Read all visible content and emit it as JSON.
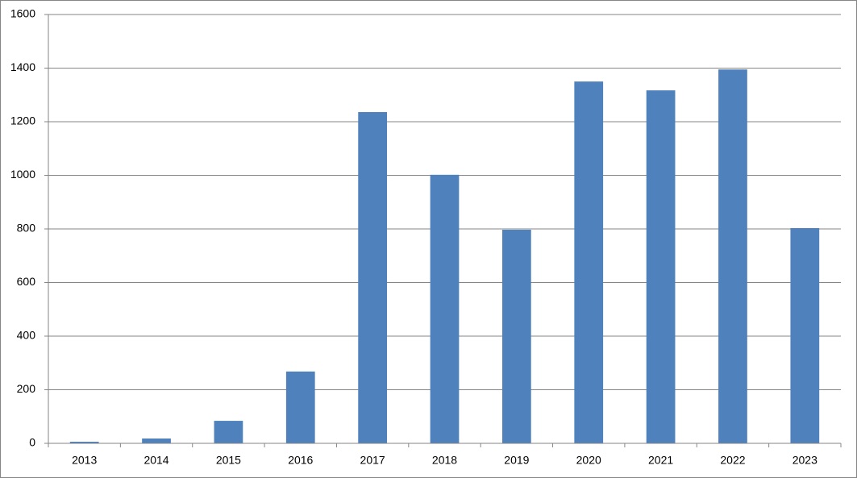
{
  "chart_data": {
    "type": "bar",
    "categories": [
      "2013",
      "2014",
      "2015",
      "2016",
      "2017",
      "2018",
      "2019",
      "2020",
      "2021",
      "2022",
      "2023"
    ],
    "values": [
      6,
      18,
      84,
      268,
      1236,
      1002,
      797,
      1350,
      1317,
      1395,
      803
    ],
    "color": "#4f81bd",
    "ylim": [
      0,
      1600
    ],
    "yticks": [
      0,
      200,
      400,
      600,
      800,
      1000,
      1200,
      1400,
      1600
    ],
    "grid": true
  }
}
